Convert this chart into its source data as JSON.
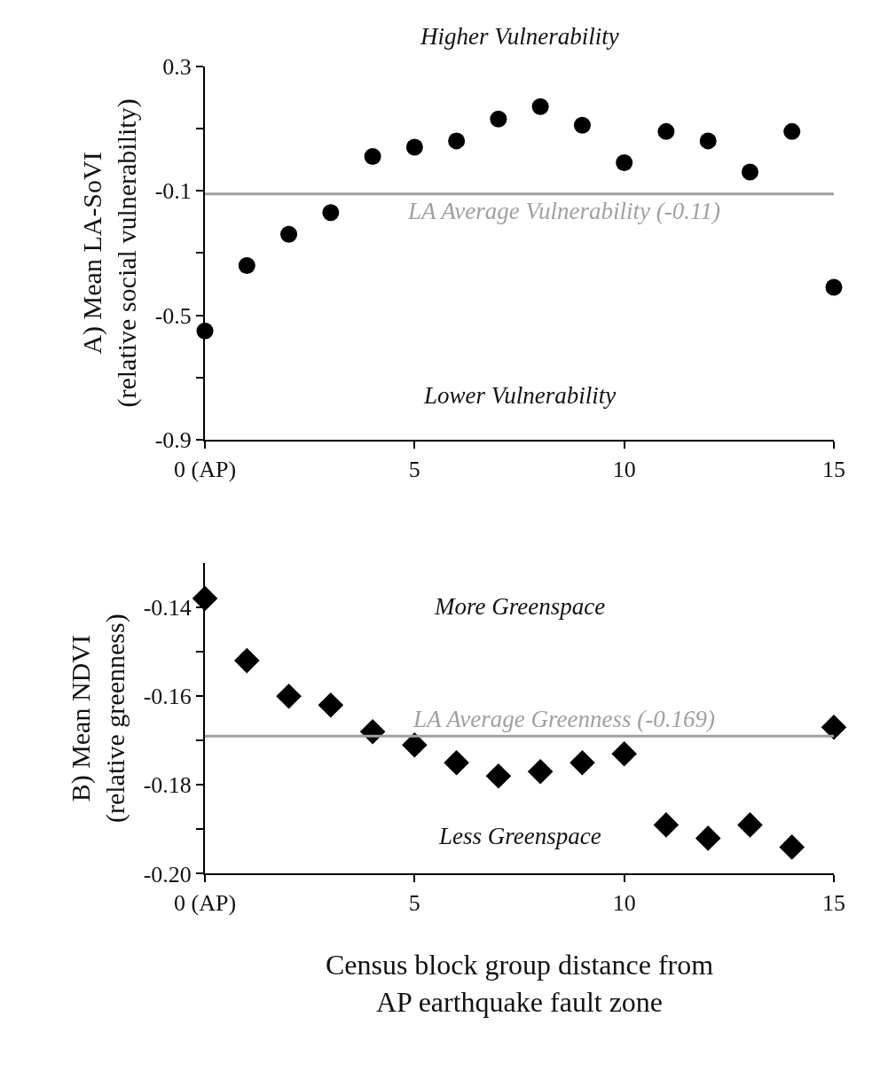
{
  "chart_data": [
    {
      "type": "scatter",
      "ylabel": "A) Mean LA-SoVI\n(relative social vulnerability)",
      "x": [
        0,
        1,
        2,
        3,
        4,
        5,
        6,
        7,
        8,
        9,
        10,
        11,
        12,
        13,
        14,
        15
      ],
      "series": [
        {
          "color": "#000000",
          "values": [
            -0.55,
            -0.34,
            -0.24,
            -0.17,
            0.01,
            0.04,
            0.06,
            0.13,
            0.17,
            0.11,
            -0.01,
            0.09,
            0.06,
            -0.04,
            0.09,
            -0.41
          ]
        }
      ],
      "xlim": [
        0,
        15
      ],
      "xticks": [
        {
          "value": 0,
          "label": "0 (AP)"
        },
        5,
        10,
        15
      ],
      "ylim": [
        -0.9,
        0.3
      ],
      "yticks": [
        -0.9,
        {
          "value": -0.7,
          "label": null
        },
        -0.5,
        {
          "value": -0.3,
          "label": null
        },
        -0.1,
        {
          "value": 0.1,
          "label": null
        },
        0.3
      ],
      "ref_lines": [
        {
          "axis": "y",
          "value": -0.11,
          "label": "LA Average Vulnerability (-0.11)",
          "color": "#a0a0a0"
        }
      ],
      "annotations": [
        "Higher Vulnerability",
        "Lower Vulnerability"
      ],
      "marker": "circle"
    },
    {
      "type": "scatter",
      "ylabel": "B) Mean NDVI\n(relative greenness)",
      "xlabel": "Census block group distance from\nAP earthquake fault zone",
      "x": [
        0,
        1,
        2,
        3,
        4,
        5,
        6,
        7,
        8,
        9,
        10,
        11,
        12,
        13,
        14,
        15
      ],
      "series": [
        {
          "color": "#000000",
          "values": [
            -0.138,
            -0.152,
            -0.16,
            -0.162,
            -0.168,
            -0.171,
            -0.175,
            -0.178,
            -0.177,
            -0.175,
            -0.173,
            -0.189,
            -0.192,
            -0.189,
            -0.194,
            -0.167
          ]
        }
      ],
      "xlim": [
        0,
        15
      ],
      "xticks": [
        {
          "value": 0,
          "label": "0 (AP)"
        },
        5,
        10,
        15
      ],
      "ylim": [
        -0.2,
        -0.13
      ],
      "yticks": [
        {
          "value": -0.2,
          "label": "-0.20"
        },
        {
          "value": -0.19,
          "label": null
        },
        -0.18,
        {
          "value": -0.17,
          "label": null
        },
        -0.16,
        {
          "value": -0.15,
          "label": null
        },
        -0.14
      ],
      "ref_lines": [
        {
          "axis": "y",
          "value": -0.169,
          "label": "LA Average Greenness (-0.169)",
          "color": "#a0a0a0"
        }
      ],
      "annotations": [
        "More Greenspace",
        "Less Greenspace"
      ],
      "marker": "diamond"
    }
  ]
}
